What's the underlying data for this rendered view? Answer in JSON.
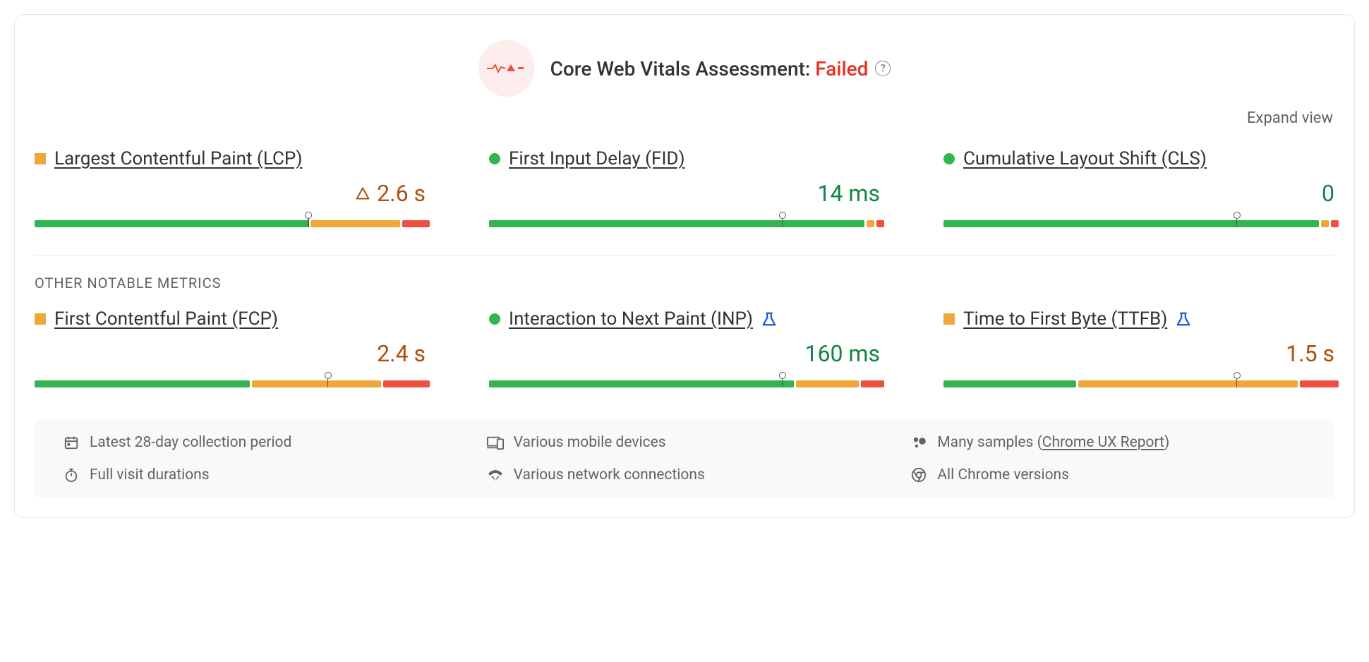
{
  "header": {
    "title_prefix": "Core Web Vitals Assessment: ",
    "result_label": "Failed",
    "result_color": "#e53125",
    "status_icon_bg": "#fdeeed",
    "status_icon_stroke": "#f04e42"
  },
  "expand_link": "Expand view",
  "section_other_heading": "OTHER NOTABLE METRICS",
  "colors": {
    "green": "#32b450",
    "orange": "#f0a73a",
    "red": "#f04e42",
    "value_green": "#0c8644",
    "value_amber": "#b04e0e",
    "flask_blue": "#1a51e6"
  },
  "core_metrics": [
    {
      "id": "lcp",
      "name": "Largest Contentful Paint (LCP)",
      "status_shape": "square",
      "status_color": "#f0a73a",
      "value": "2.6 s",
      "value_color": "#b04e0e",
      "show_warning_triangle": true,
      "bar": {
        "green": 70,
        "orange": 23,
        "red": 7
      },
      "marker_pct": 70,
      "experimental": false
    },
    {
      "id": "fid",
      "name": "First Input Delay (FID)",
      "status_shape": "circle",
      "status_color": "#32b450",
      "value": "14 ms",
      "value_color": "#0c8644",
      "show_warning_triangle": false,
      "bar": {
        "green": 96,
        "orange": 2,
        "red": 2
      },
      "marker_pct": 75,
      "experimental": false
    },
    {
      "id": "cls",
      "name": "Cumulative Layout Shift (CLS)",
      "status_shape": "circle",
      "status_color": "#32b450",
      "value": "0",
      "value_color": "#0c8644",
      "show_warning_triangle": false,
      "bar": {
        "green": 96,
        "orange": 2,
        "red": 2
      },
      "marker_pct": 75,
      "experimental": false
    }
  ],
  "other_metrics": [
    {
      "id": "fcp",
      "name": "First Contentful Paint (FCP)",
      "status_shape": "square",
      "status_color": "#f0a73a",
      "value": "2.4 s",
      "value_color": "#b04e0e",
      "show_warning_triangle": false,
      "bar": {
        "green": 55,
        "orange": 33,
        "red": 12
      },
      "marker_pct": 75,
      "experimental": false
    },
    {
      "id": "inp",
      "name": "Interaction to Next Paint (INP)",
      "status_shape": "circle",
      "status_color": "#32b450",
      "value": "160 ms",
      "value_color": "#0c8644",
      "show_warning_triangle": false,
      "bar": {
        "green": 78,
        "orange": 16,
        "red": 6
      },
      "marker_pct": 75,
      "experimental": true
    },
    {
      "id": "ttfb",
      "name": "Time to First Byte (TTFB)",
      "status_shape": "square",
      "status_color": "#f0a73a",
      "value": "1.5 s",
      "value_color": "#b04e0e",
      "show_warning_triangle": false,
      "bar": {
        "green": 34,
        "orange": 56,
        "red": 10
      },
      "marker_pct": 75,
      "experimental": true
    }
  ],
  "footer": {
    "period": "Latest 28-day collection period",
    "devices": "Various mobile devices",
    "samples_prefix": "Many samples (",
    "samples_link": "Chrome UX Report",
    "samples_suffix": ")",
    "durations": "Full visit durations",
    "network": "Various network connections",
    "versions": "All Chrome versions"
  }
}
